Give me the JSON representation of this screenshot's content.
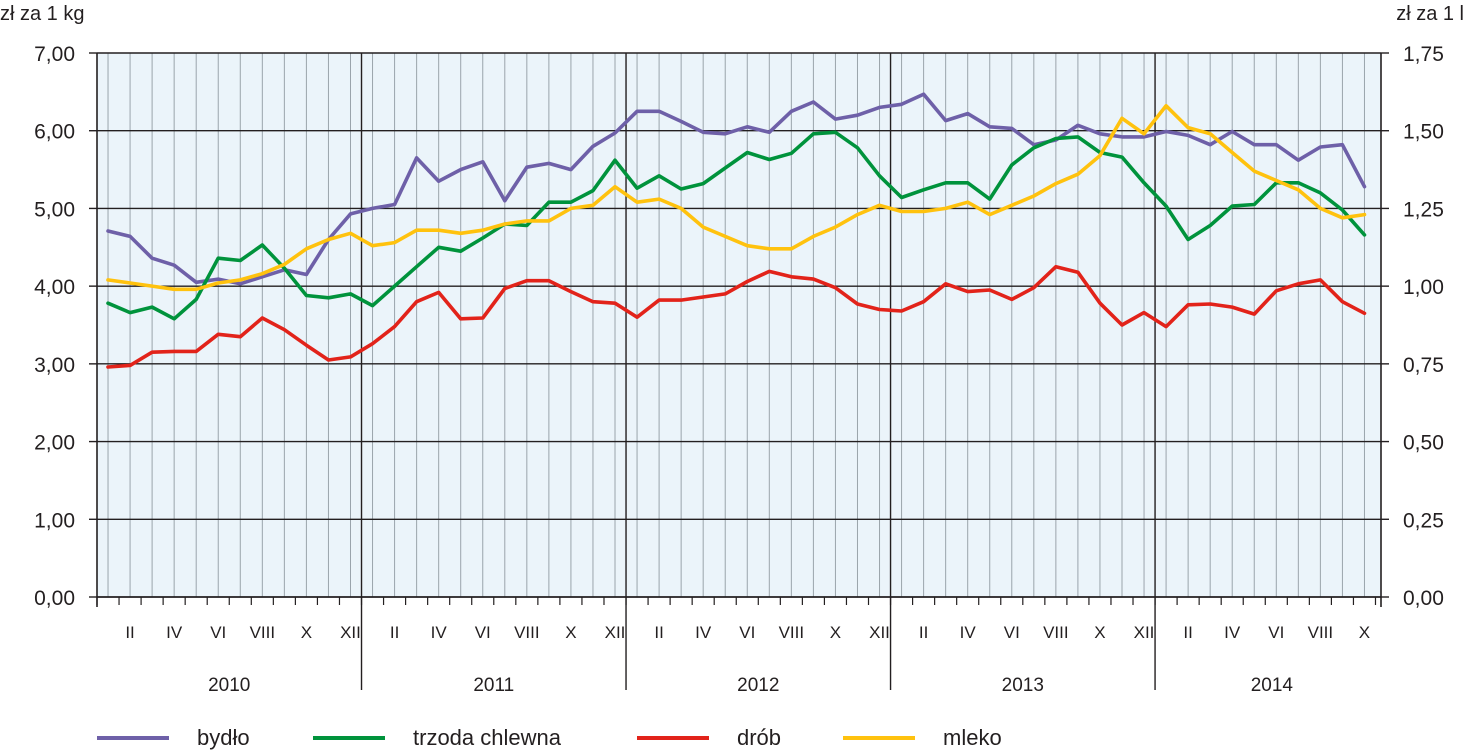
{
  "chart_data": {
    "type": "line",
    "ylabel_left": "zł za 1 kg",
    "ylabel_right": "zł za 1 l",
    "ylim_left": [
      0,
      7
    ],
    "ylim_right": [
      0,
      1.75
    ],
    "yticks_left": [
      "0,00",
      "1,00",
      "2,00",
      "3,00",
      "4,00",
      "5,00",
      "6,00",
      "7,00"
    ],
    "yticks_right": [
      "0,00",
      "0,25",
      "0,50",
      "0,75",
      "1,00",
      "1,25",
      "1,50",
      "1,75"
    ],
    "years": [
      "2010",
      "2011",
      "2012",
      "2013",
      "2014"
    ],
    "month_labels": [
      "II",
      "IV",
      "VI",
      "VIII",
      "X",
      "XII"
    ],
    "month_labels_last_year": [
      "II",
      "IV",
      "VI",
      "VIII",
      "X"
    ],
    "months_in_years": [
      12,
      12,
      12,
      12,
      10
    ],
    "grid": true,
    "legend_position": "bottom",
    "series": [
      {
        "name": "bydło",
        "axis": "left",
        "color": "#6e60a8",
        "values": [
          4.71,
          4.64,
          4.36,
          4.27,
          4.05,
          4.09,
          4.03,
          4.12,
          4.21,
          4.15,
          4.6,
          4.93,
          5.0,
          5.05,
          5.65,
          5.35,
          5.5,
          5.6,
          5.1,
          5.53,
          5.58,
          5.5,
          5.8,
          5.97,
          6.25,
          6.25,
          6.12,
          5.98,
          5.96,
          6.05,
          5.98,
          6.25,
          6.37,
          6.15,
          6.2,
          6.3,
          6.34,
          6.47,
          6.13,
          6.22,
          6.05,
          6.03,
          5.82,
          5.88,
          6.07,
          5.96,
          5.92,
          5.92,
          5.99,
          5.94,
          5.82,
          5.99,
          5.82,
          5.82,
          5.62,
          5.79,
          5.82,
          5.28
        ]
      },
      {
        "name": "trzoda chlewna",
        "axis": "left",
        "color": "#00933c",
        "values": [
          3.78,
          3.66,
          3.73,
          3.58,
          3.83,
          4.36,
          4.33,
          4.53,
          4.23,
          3.88,
          3.85,
          3.9,
          3.75,
          4.0,
          4.25,
          4.5,
          4.45,
          4.62,
          4.8,
          4.78,
          5.08,
          5.08,
          5.23,
          5.62,
          5.26,
          5.42,
          5.25,
          5.32,
          5.52,
          5.72,
          5.63,
          5.71,
          5.96,
          5.98,
          5.78,
          5.42,
          5.14,
          5.24,
          5.33,
          5.33,
          5.12,
          5.56,
          5.78,
          5.9,
          5.92,
          5.72,
          5.66,
          5.33,
          5.03,
          4.6,
          4.78,
          5.03,
          5.05,
          5.33,
          5.33,
          5.2,
          4.98,
          4.66
        ]
      },
      {
        "name": "drób",
        "axis": "left",
        "color": "#e2231a",
        "values": [
          2.96,
          2.98,
          3.15,
          3.16,
          3.16,
          3.38,
          3.35,
          3.59,
          3.44,
          3.24,
          3.05,
          3.09,
          3.26,
          3.48,
          3.8,
          3.92,
          3.58,
          3.59,
          3.97,
          4.07,
          4.07,
          3.93,
          3.8,
          3.78,
          3.6,
          3.82,
          3.82,
          3.86,
          3.9,
          4.06,
          4.19,
          4.12,
          4.09,
          3.98,
          3.77,
          3.7,
          3.68,
          3.8,
          4.03,
          3.93,
          3.95,
          3.83,
          3.98,
          4.25,
          4.18,
          3.78,
          3.5,
          3.66,
          3.48,
          3.76,
          3.77,
          3.73,
          3.64,
          3.94,
          4.03,
          4.08,
          3.8,
          3.65
        ]
      },
      {
        "name": "mleko",
        "axis": "right",
        "color": "#ffc20e",
        "values": [
          1.02,
          1.01,
          1.0,
          0.99,
          0.99,
          1.01,
          1.02,
          1.04,
          1.07,
          1.12,
          1.15,
          1.17,
          1.13,
          1.14,
          1.18,
          1.18,
          1.17,
          1.18,
          1.2,
          1.21,
          1.21,
          1.25,
          1.26,
          1.32,
          1.27,
          1.28,
          1.25,
          1.19,
          1.16,
          1.13,
          1.12,
          1.12,
          1.16,
          1.19,
          1.23,
          1.26,
          1.24,
          1.24,
          1.25,
          1.27,
          1.23,
          1.26,
          1.29,
          1.33,
          1.36,
          1.42,
          1.54,
          1.49,
          1.58,
          1.51,
          1.49,
          1.43,
          1.37,
          1.34,
          1.31,
          1.25,
          1.22,
          1.23
        ]
      }
    ]
  }
}
